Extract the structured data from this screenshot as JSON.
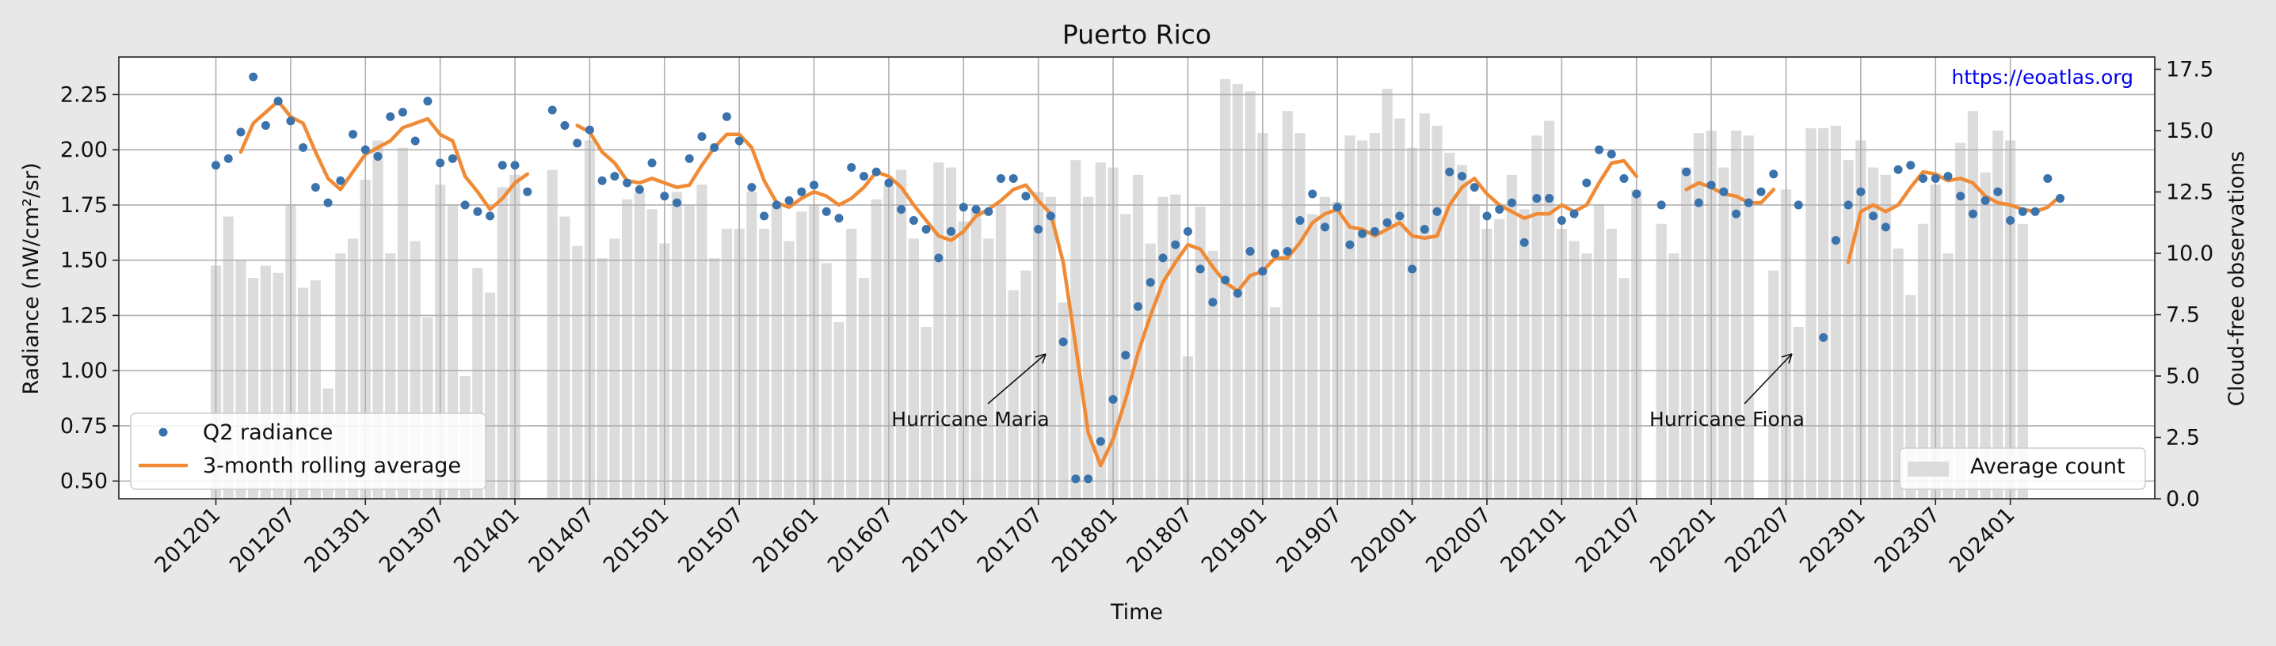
{
  "chart_data": {
    "type": "bar+line+scatter",
    "title": "Puerto Rico",
    "xlabel": "Time",
    "ylabel_left": "Radiance (nW/cm²/sr)",
    "ylabel_right": "Cloud-free observations",
    "ylim_left": [
      0.42,
      2.42
    ],
    "ylim_right": [
      0.0,
      18.0
    ],
    "yticks_left": [
      "0.50",
      "0.75",
      "1.00",
      "1.25",
      "1.50",
      "1.75",
      "2.00",
      "2.25"
    ],
    "yticks_right": [
      "0.0",
      "2.5",
      "5.0",
      "7.5",
      "10.0",
      "12.5",
      "15.0",
      "17.5"
    ],
    "x_tick_labels": [
      "201201",
      "201207",
      "201301",
      "201307",
      "201401",
      "201407",
      "201501",
      "201507",
      "201601",
      "201607",
      "201701",
      "201707",
      "201801",
      "201807",
      "201901",
      "201907",
      "202001",
      "202007",
      "202101",
      "202107",
      "202201",
      "202207",
      "202301",
      "202307",
      "202401"
    ],
    "grid": true,
    "watermark": "https://eoatlas.org",
    "legend_left": {
      "placement": "lower-left",
      "items": [
        {
          "label": "Q2 radiance",
          "marker": "dot",
          "color": "#3a72ac"
        },
        {
          "label": "3-month rolling average",
          "marker": "line",
          "color": "#f08a35"
        }
      ]
    },
    "legend_right": {
      "placement": "lower-right",
      "items": [
        {
          "label": "Average count",
          "marker": "bar",
          "color": "#dcdcdc"
        }
      ]
    },
    "annotations": [
      {
        "text": "Hurricane Maria",
        "target_month": "201709",
        "target_value": 1.09
      },
      {
        "text": "Hurricane Fiona",
        "target_month": "202209",
        "target_value": 1.1
      }
    ],
    "start_month": "2012-01",
    "series": [
      {
        "name": "Q2 radiance",
        "kind": "scatter",
        "color": "#3a72ac",
        "values": [
          1.93,
          1.96,
          2.08,
          2.33,
          2.11,
          2.22,
          2.13,
          2.01,
          1.83,
          1.76,
          1.86,
          2.07,
          2.0,
          1.97,
          2.15,
          2.17,
          2.04,
          2.22,
          1.94,
          1.96,
          1.75,
          1.72,
          1.7,
          1.93,
          1.93,
          1.81,
          null,
          2.18,
          2.11,
          2.03,
          2.09,
          1.86,
          1.88,
          1.85,
          1.82,
          1.94,
          1.79,
          1.76,
          1.96,
          2.06,
          2.01,
          2.15,
          2.04,
          1.83,
          1.7,
          1.75,
          1.77,
          1.81,
          1.84,
          1.72,
          1.69,
          1.92,
          1.88,
          1.9,
          1.85,
          1.73,
          1.68,
          1.64,
          1.51,
          1.63,
          1.74,
          1.73,
          1.72,
          1.87,
          1.87,
          1.79,
          1.64,
          1.7,
          1.13,
          0.51,
          0.51,
          0.68,
          0.87,
          1.07,
          1.29,
          1.4,
          1.51,
          1.57,
          1.63,
          1.46,
          1.31,
          1.41,
          1.35,
          1.54,
          1.45,
          1.53,
          1.54,
          1.68,
          1.8,
          1.65,
          1.74,
          1.57,
          1.62,
          1.63,
          1.67,
          1.7,
          1.46,
          1.64,
          1.72,
          1.9,
          1.88,
          1.83,
          1.7,
          1.73,
          1.76,
          1.58,
          1.78,
          1.78,
          1.68,
          1.71,
          1.85,
          2.0,
          1.98,
          1.87,
          1.8,
          null,
          1.75,
          null,
          1.9,
          1.76,
          1.84,
          1.81,
          1.71,
          1.76,
          1.81,
          1.89,
          null,
          1.75,
          null,
          1.15,
          1.59,
          1.75,
          1.81,
          1.7,
          1.65,
          1.91,
          1.93,
          1.87,
          1.87,
          1.88,
          1.79,
          1.71,
          1.77,
          1.81,
          1.68,
          1.72,
          1.72,
          1.87,
          1.78
        ]
      },
      {
        "name": "3-month rolling average",
        "kind": "line",
        "color": "#f08a35",
        "values": [
          null,
          null,
          1.99,
          2.12,
          2.17,
          2.22,
          2.15,
          2.12,
          1.99,
          1.87,
          1.82,
          1.9,
          1.98,
          2.01,
          2.04,
          2.1,
          2.12,
          2.14,
          2.07,
          2.04,
          1.88,
          1.81,
          1.73,
          1.78,
          1.85,
          1.89,
          null,
          null,
          null,
          2.11,
          2.08,
          1.99,
          1.94,
          1.86,
          1.85,
          1.87,
          1.85,
          1.83,
          1.84,
          1.93,
          2.01,
          2.07,
          2.07,
          2.01,
          1.86,
          1.76,
          1.74,
          1.78,
          1.81,
          1.79,
          1.75,
          1.78,
          1.83,
          1.9,
          1.88,
          1.83,
          1.75,
          1.68,
          1.61,
          1.59,
          1.63,
          1.7,
          1.73,
          1.77,
          1.82,
          1.84,
          1.77,
          1.71,
          1.49,
          1.11,
          0.72,
          0.57,
          0.69,
          0.87,
          1.08,
          1.25,
          1.4,
          1.49,
          1.57,
          1.55,
          1.47,
          1.4,
          1.36,
          1.43,
          1.45,
          1.51,
          1.51,
          1.58,
          1.67,
          1.71,
          1.73,
          1.65,
          1.64,
          1.61,
          1.64,
          1.67,
          1.61,
          1.6,
          1.61,
          1.75,
          1.83,
          1.87,
          1.8,
          1.75,
          1.72,
          1.69,
          1.71,
          1.71,
          1.75,
          1.72,
          1.75,
          1.85,
          1.94,
          1.95,
          1.88,
          null,
          null,
          null,
          1.82,
          1.85,
          1.83,
          1.8,
          1.79,
          1.76,
          1.76,
          1.82,
          null,
          null,
          null,
          null,
          null,
          1.49,
          1.72,
          1.75,
          1.72,
          1.75,
          1.83,
          1.9,
          1.89,
          1.86,
          1.87,
          1.85,
          1.79,
          1.76,
          1.75,
          1.73,
          1.72,
          1.74,
          1.79
        ]
      },
      {
        "name": "Average count",
        "kind": "bar",
        "axis": "right",
        "color": "#dcdcdc",
        "values": [
          9.5,
          11.5,
          9.7,
          9.0,
          9.5,
          9.2,
          12.0,
          8.6,
          8.9,
          4.5,
          10.0,
          10.6,
          13.0,
          14.6,
          10.0,
          14.3,
          10.5,
          7.4,
          12.8,
          12.0,
          5.0,
          9.4,
          8.4,
          12.7,
          13.2,
          0.0,
          0.0,
          13.4,
          11.5,
          10.3,
          14.6,
          9.8,
          10.6,
          12.2,
          12.5,
          11.8,
          10.4,
          12.5,
          12.0,
          12.8,
          9.8,
          11.0,
          11.0,
          12.5,
          11.0,
          12.0,
          10.5,
          11.7,
          12.0,
          9.6,
          7.2,
          11.0,
          9.0,
          12.2,
          12.8,
          13.4,
          10.6,
          7.0,
          13.7,
          13.5,
          11.3,
          11.8,
          10.6,
          12.0,
          8.5,
          9.3,
          12.5,
          12.3,
          8.0,
          13.8,
          12.3,
          13.7,
          13.5,
          11.6,
          13.2,
          10.4,
          12.3,
          12.4,
          5.8,
          11.9,
          10.1,
          17.1,
          16.9,
          16.6,
          14.9,
          7.8,
          15.8,
          14.9,
          11.6,
          12.3,
          12.1,
          14.8,
          14.6,
          14.9,
          16.7,
          15.5,
          14.3,
          15.7,
          15.2,
          14.1,
          13.6,
          12.0,
          11.0,
          11.4,
          13.2,
          11.8,
          14.8,
          15.4,
          11.0,
          10.5,
          10.0,
          12.0,
          11.0,
          9.0,
          12.6,
          0.0,
          11.2,
          10.0,
          13.5,
          14.9,
          15.0,
          13.5,
          15.0,
          14.8,
          0.0,
          9.3,
          12.6,
          7.0,
          15.1,
          15.1,
          15.2,
          13.8,
          14.6,
          13.5,
          13.2,
          10.2,
          8.3,
          11.2,
          12.8,
          10.0,
          14.5,
          15.8,
          13.3,
          15.0,
          14.6,
          11.2
        ]
      }
    ]
  }
}
